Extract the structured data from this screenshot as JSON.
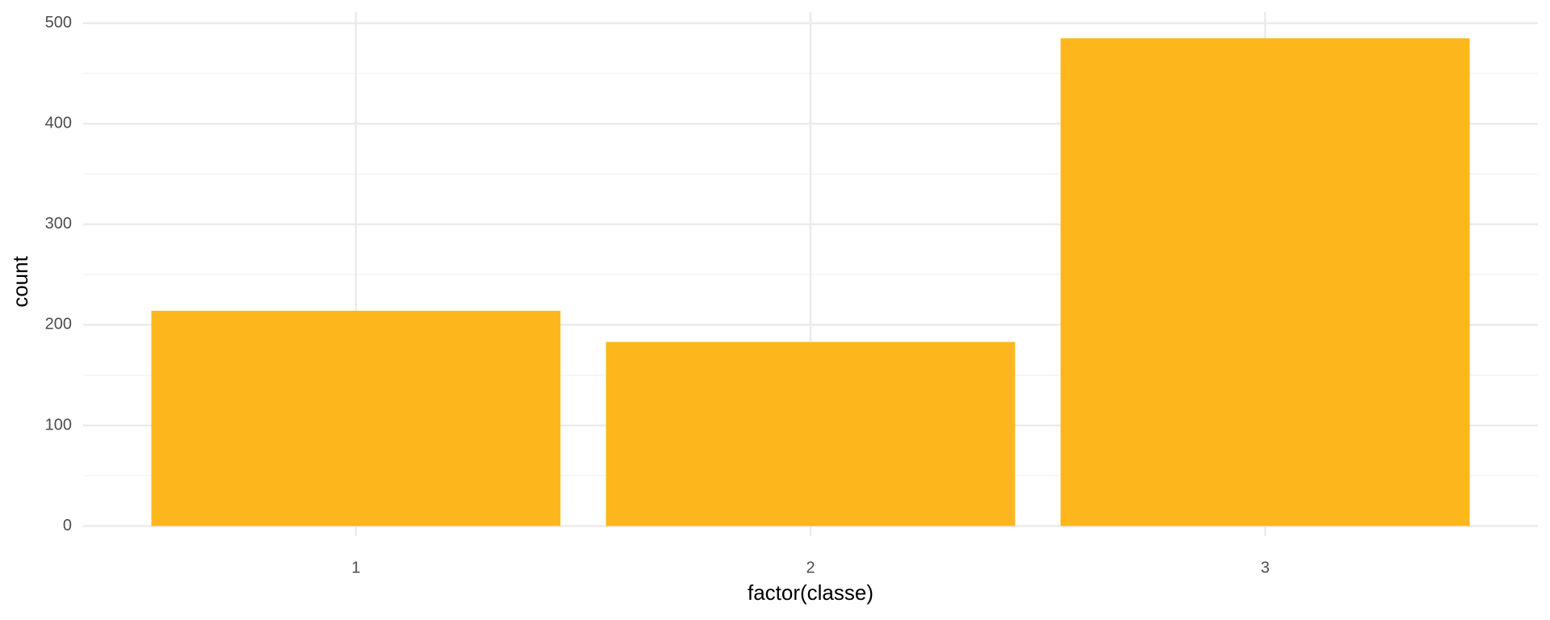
{
  "chart_data": {
    "type": "bar",
    "x_label": "factor(classe)",
    "y_label": "count",
    "categories": [
      "1",
      "2",
      "3"
    ],
    "values": [
      214,
      183,
      485
    ],
    "color": "#fdb71d",
    "ylim": [
      -10,
      511
    ],
    "yticks": [
      0,
      100,
      200,
      300,
      400,
      500
    ],
    "minor_yticks": [
      50,
      150,
      250,
      350,
      450
    ],
    "grid": true
  }
}
